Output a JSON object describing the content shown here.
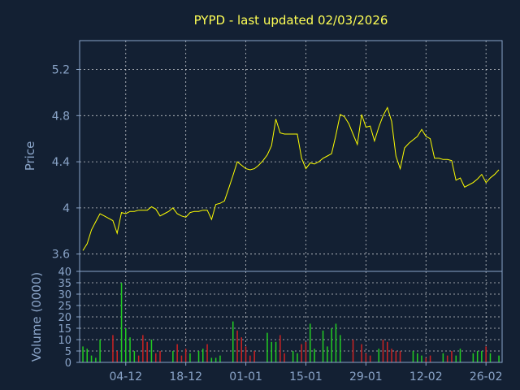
{
  "chart_data": {
    "type": "line",
    "title": "PYPD - last updated 02/03/2026",
    "colors": {
      "background": "#132033",
      "price_line": "#ffff00",
      "axis": "#8aa4c8",
      "title": "#ffff55",
      "volume_up": "#22cc22",
      "volume_down": "#cc2222",
      "grid": "#ffffff"
    },
    "price": {
      "ylabel": "Price",
      "ylim": [
        3.45,
        5.45
      ],
      "yticks": [
        "3.6",
        "4",
        "4.4",
        "4.8",
        "5.2"
      ],
      "ytick_values": [
        3.6,
        4.0,
        4.4,
        4.8,
        5.2
      ],
      "points": [
        [
          0,
          3.63
        ],
        [
          1,
          3.69
        ],
        [
          2,
          3.81
        ],
        [
          3,
          3.88
        ],
        [
          4,
          3.95
        ],
        [
          5,
          3.93
        ],
        [
          6,
          3.91
        ],
        [
          7,
          3.89
        ],
        [
          8,
          3.78
        ],
        [
          9,
          3.96
        ],
        [
          10,
          3.95
        ],
        [
          11,
          3.97
        ],
        [
          12,
          3.97
        ],
        [
          13,
          3.98
        ],
        [
          14,
          3.98
        ],
        [
          15,
          3.98
        ],
        [
          16,
          4.01
        ],
        [
          17,
          3.99
        ],
        [
          18,
          3.93
        ],
        [
          19,
          3.95
        ],
        [
          20,
          3.97
        ],
        [
          21,
          4.0
        ],
        [
          22,
          3.95
        ],
        [
          23,
          3.93
        ],
        [
          24,
          3.92
        ],
        [
          25,
          3.96
        ],
        [
          26,
          3.97
        ],
        [
          27,
          3.97
        ],
        [
          28,
          3.98
        ],
        [
          29,
          3.98
        ],
        [
          30,
          3.9
        ],
        [
          31,
          4.03
        ],
        [
          32,
          4.04
        ],
        [
          33,
          4.06
        ],
        [
          34,
          4.17
        ],
        [
          35,
          4.28
        ],
        [
          36,
          4.4
        ],
        [
          37,
          4.37
        ],
        [
          38,
          4.34
        ],
        [
          39,
          4.33
        ],
        [
          40,
          4.34
        ],
        [
          41,
          4.37
        ],
        [
          42,
          4.41
        ],
        [
          43,
          4.46
        ],
        [
          44,
          4.54
        ],
        [
          45,
          4.77
        ],
        [
          46,
          4.65
        ],
        [
          47,
          4.64
        ],
        [
          48,
          4.64
        ],
        [
          49,
          4.64
        ],
        [
          50,
          4.64
        ],
        [
          51,
          4.43
        ],
        [
          52,
          4.34
        ],
        [
          53,
          4.39
        ],
        [
          54,
          4.38
        ],
        [
          55,
          4.4
        ],
        [
          56,
          4.43
        ],
        [
          57,
          4.45
        ],
        [
          58,
          4.47
        ],
        [
          59,
          4.63
        ],
        [
          60,
          4.81
        ],
        [
          61,
          4.79
        ],
        [
          62,
          4.73
        ],
        [
          63,
          4.64
        ],
        [
          64,
          4.55
        ],
        [
          65,
          4.81
        ],
        [
          66,
          4.7
        ],
        [
          67,
          4.71
        ],
        [
          68,
          4.58
        ],
        [
          69,
          4.7
        ],
        [
          70,
          4.8
        ],
        [
          71,
          4.87
        ],
        [
          72,
          4.75
        ],
        [
          73,
          4.45
        ],
        [
          74,
          4.34
        ],
        [
          75,
          4.52
        ],
        [
          76,
          4.56
        ],
        [
          77,
          4.59
        ],
        [
          78,
          4.62
        ],
        [
          79,
          4.68
        ],
        [
          80,
          4.62
        ],
        [
          81,
          4.6
        ],
        [
          82,
          4.43
        ],
        [
          83,
          4.43
        ],
        [
          84,
          4.42
        ],
        [
          85,
          4.42
        ],
        [
          86,
          4.41
        ],
        [
          87,
          4.24
        ],
        [
          88,
          4.26
        ],
        [
          89,
          4.18
        ],
        [
          90,
          4.2
        ],
        [
          91,
          4.22
        ],
        [
          92,
          4.25
        ],
        [
          93,
          4.29
        ],
        [
          94,
          4.22
        ],
        [
          95,
          4.26
        ],
        [
          96,
          4.29
        ],
        [
          97,
          4.33
        ]
      ]
    },
    "volume": {
      "ylabel": "Volume (0000)",
      "ylim": [
        0,
        40
      ],
      "yticks": [
        "0",
        "5",
        "10",
        "15",
        "20",
        "25",
        "30",
        "35",
        "40"
      ],
      "ytick_values": [
        0,
        5,
        10,
        15,
        20,
        25,
        30,
        35,
        40
      ],
      "bars": [
        [
          0,
          7,
          "up"
        ],
        [
          1,
          6,
          "up"
        ],
        [
          2,
          3,
          "up"
        ],
        [
          3,
          2,
          "up"
        ],
        [
          4,
          10,
          "up"
        ],
        [
          7,
          12,
          "down"
        ],
        [
          8,
          5,
          "down"
        ],
        [
          9,
          35,
          "up"
        ],
        [
          10,
          15,
          "up"
        ],
        [
          11,
          11,
          "up"
        ],
        [
          12,
          5,
          "up"
        ],
        [
          13,
          3,
          "down"
        ],
        [
          14,
          12,
          "down"
        ],
        [
          15,
          9,
          "down"
        ],
        [
          16,
          10,
          "up"
        ],
        [
          17,
          4,
          "down"
        ],
        [
          18,
          5,
          "down"
        ],
        [
          21,
          5,
          "up"
        ],
        [
          22,
          8,
          "down"
        ],
        [
          23,
          3,
          "down"
        ],
        [
          24,
          6,
          "down"
        ],
        [
          25,
          4,
          "up"
        ],
        [
          27,
          5,
          "up"
        ],
        [
          28,
          6,
          "up"
        ],
        [
          29,
          8,
          "down"
        ],
        [
          30,
          2,
          "up"
        ],
        [
          31,
          2,
          "up"
        ],
        [
          32,
          3,
          "up"
        ],
        [
          35,
          18,
          "up"
        ],
        [
          36,
          14,
          "down"
        ],
        [
          37,
          11,
          "down"
        ],
        [
          38,
          7,
          "down"
        ],
        [
          39,
          3,
          "down"
        ],
        [
          40,
          5,
          "down"
        ],
        [
          43,
          13,
          "up"
        ],
        [
          44,
          9,
          "up"
        ],
        [
          45,
          9,
          "up"
        ],
        [
          46,
          12,
          "down"
        ],
        [
          47,
          4,
          "down"
        ],
        [
          49,
          5,
          "up"
        ],
        [
          50,
          4,
          "up"
        ],
        [
          51,
          8,
          "down"
        ],
        [
          52,
          9,
          "down"
        ],
        [
          53,
          17,
          "up"
        ],
        [
          54,
          6,
          "up"
        ],
        [
          56,
          14,
          "up"
        ],
        [
          57,
          7,
          "up"
        ],
        [
          58,
          15,
          "up"
        ],
        [
          59,
          17,
          "up"
        ],
        [
          60,
          12,
          "up"
        ],
        [
          63,
          10,
          "down"
        ],
        [
          65,
          8,
          "down"
        ],
        [
          66,
          4,
          "down"
        ],
        [
          67,
          3,
          "down"
        ],
        [
          69,
          6,
          "up"
        ],
        [
          70,
          10,
          "down"
        ],
        [
          71,
          9,
          "down"
        ],
        [
          72,
          6,
          "down"
        ],
        [
          73,
          5,
          "down"
        ],
        [
          74,
          5,
          "down"
        ],
        [
          77,
          5,
          "up"
        ],
        [
          78,
          4,
          "up"
        ],
        [
          79,
          3,
          "up"
        ],
        [
          80,
          2,
          "down"
        ],
        [
          81,
          3,
          "down"
        ],
        [
          84,
          4,
          "up"
        ],
        [
          85,
          3,
          "down"
        ],
        [
          86,
          5,
          "down"
        ],
        [
          87,
          3,
          "up"
        ],
        [
          88,
          6,
          "up"
        ],
        [
          91,
          4,
          "up"
        ],
        [
          92,
          5,
          "up"
        ],
        [
          93,
          5,
          "up"
        ],
        [
          94,
          7,
          "down"
        ],
        [
          95,
          4,
          "up"
        ],
        [
          97,
          3,
          "up"
        ]
      ]
    },
    "x": {
      "n_days": 98,
      "ticks": [
        {
          "label": "04-12",
          "day": 10
        },
        {
          "label": "18-12",
          "day": 24
        },
        {
          "label": "01-01",
          "day": 38
        },
        {
          "label": "15-01",
          "day": 52
        },
        {
          "label": "29-01",
          "day": 66
        },
        {
          "label": "12-02",
          "day": 80
        },
        {
          "label": "26-02",
          "day": 94
        }
      ]
    }
  }
}
